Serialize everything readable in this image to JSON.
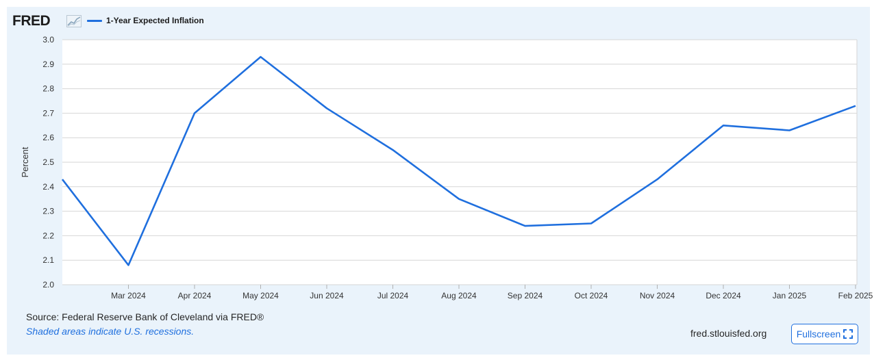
{
  "header": {
    "logo_text": "FRED",
    "legend_label": "1-Year Expected Inflation"
  },
  "footer": {
    "source_text": "Source: Federal Reserve Bank of Cleveland via FRED®",
    "recession_note": "Shaded areas indicate U.S. recessions.",
    "site_text": "fred.stlouisfed.org",
    "fullscreen_label": "Fullscreen"
  },
  "icons": {
    "logo_graph": "line-graph-icon",
    "fullscreen": "expand-icon"
  },
  "colors": {
    "series": "#1f6fde",
    "panel_background": "#eaf3fb",
    "plot_background": "#ffffff",
    "gridline": "#d6d6d6"
  },
  "chart_data": {
    "type": "line",
    "title": "",
    "xlabel": "",
    "ylabel": "Percent",
    "ylim": [
      2.0,
      3.0
    ],
    "yticks": [
      "2.0",
      "2.1",
      "2.2",
      "2.3",
      "2.4",
      "2.5",
      "2.6",
      "2.7",
      "2.8",
      "2.9",
      "3.0"
    ],
    "x_tick_labels": [
      "Mar 2024",
      "Apr 2024",
      "May 2024",
      "Jun 2024",
      "Jul 2024",
      "Aug 2024",
      "Sep 2024",
      "Oct 2024",
      "Nov 2024",
      "Dec 2024",
      "Jan 2025",
      "Feb 2025"
    ],
    "x": [
      "Feb 2024",
      "Mar 2024",
      "Apr 2024",
      "May 2024",
      "Jun 2024",
      "Jul 2024",
      "Aug 2024",
      "Sep 2024",
      "Oct 2024",
      "Nov 2024",
      "Dec 2024",
      "Jan 2025",
      "Feb 2025"
    ],
    "grid": true,
    "legend_position": "top-left",
    "series": [
      {
        "name": "1-Year Expected Inflation",
        "values": [
          2.43,
          2.08,
          2.7,
          2.93,
          2.72,
          2.55,
          2.35,
          2.24,
          2.25,
          2.43,
          2.65,
          2.63,
          2.73
        ]
      }
    ]
  }
}
